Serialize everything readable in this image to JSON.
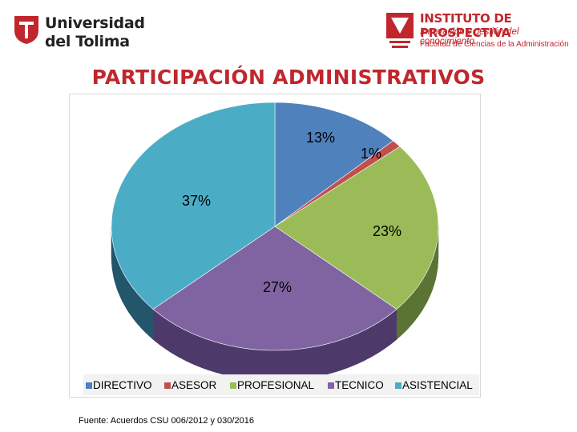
{
  "header": {
    "left_logo": {
      "line1": "Universidad",
      "line2": "del Tolima",
      "icon": "university-shield-icon",
      "color": "#c0272d"
    },
    "right_logo": {
      "line1": "INSTITUTO DE PROSPECTIVA",
      "line2": "Innovación y gestión del conocimiento",
      "line3": "Facultad de Ciencias de la Administración",
      "icon": "univalle-mark-icon",
      "color": "#c0272d"
    }
  },
  "chart_data": {
    "type": "pie",
    "title": "PARTICIPACIÓN ADMINISTRATIVOS",
    "style": "3d",
    "legend_position": "bottom",
    "categories": [
      "DIRECTIVO",
      "ASESOR",
      "PROFESIONAL",
      "TECNICO",
      "ASISTENCIAL"
    ],
    "values": [
      13,
      1,
      23,
      27,
      37
    ],
    "labels": [
      "13%",
      "1%",
      "23%",
      "27%",
      "37%"
    ],
    "colors": [
      "#4f81bd",
      "#c0504d",
      "#9bbb59",
      "#8064a2",
      "#4bacc6"
    ],
    "side_colors": [
      "#2f5685",
      "#8a2f2c",
      "#5c7433",
      "#4d3a6b",
      "#23566a"
    ]
  },
  "footer": {
    "source": "Fuente: Acuerdos CSU 006/2012 y 030/2016"
  }
}
